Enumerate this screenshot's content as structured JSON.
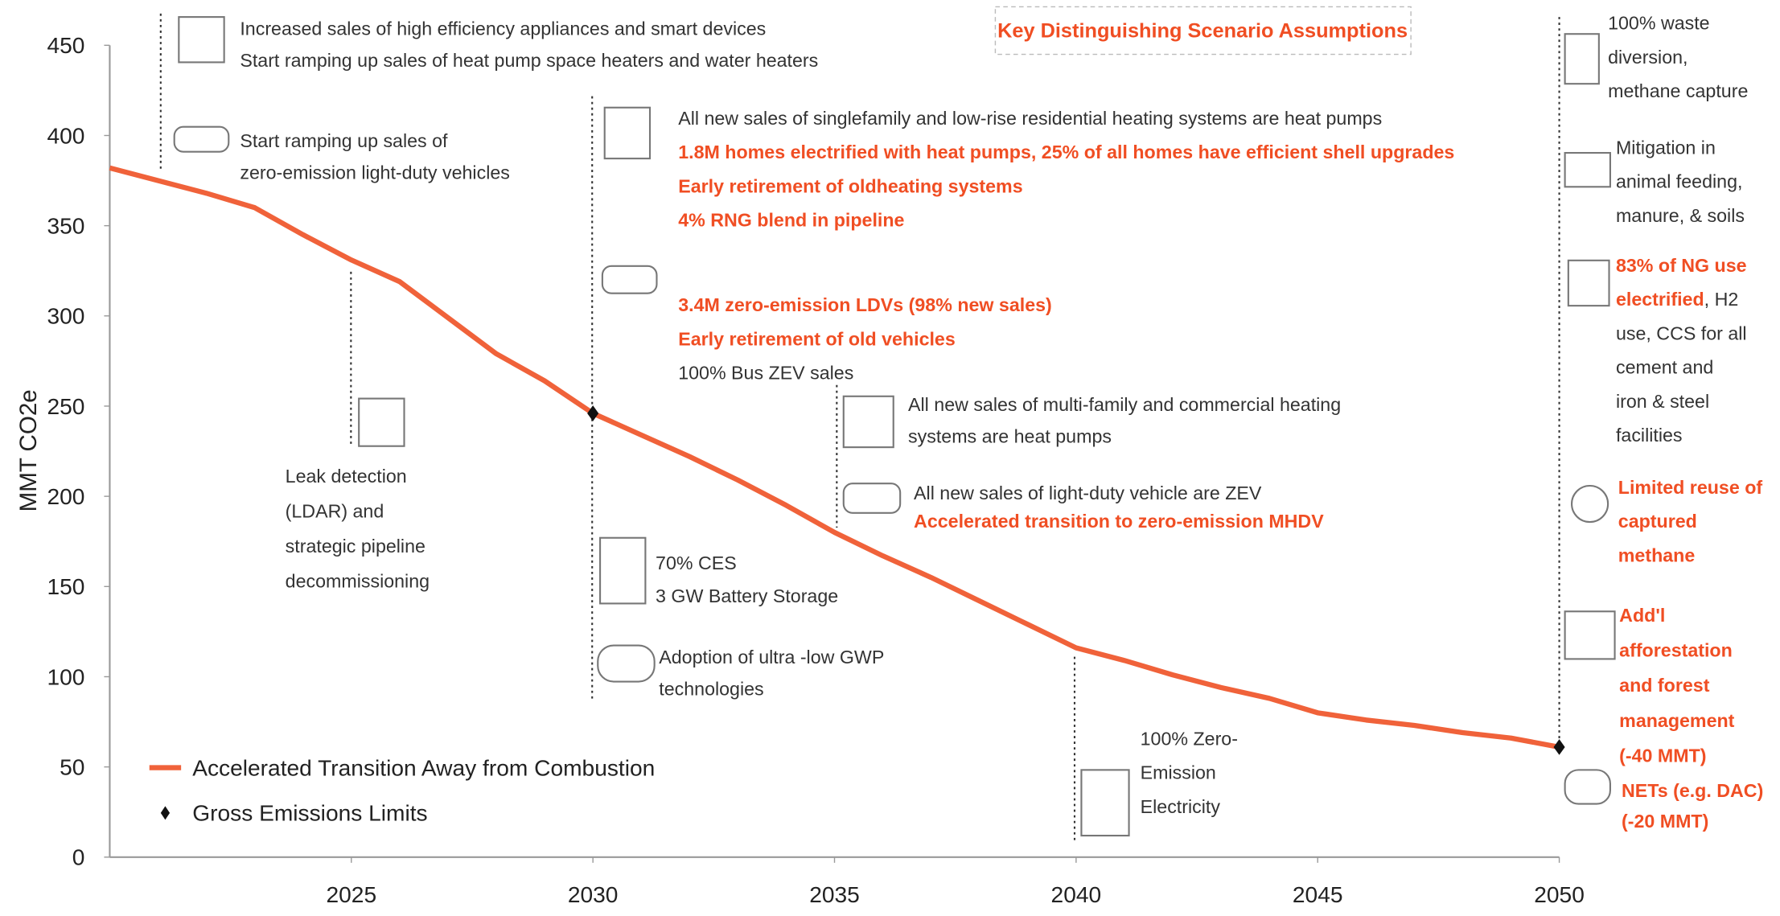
{
  "chart_data": {
    "type": "line",
    "title": "Key Distinguishing Scenario Assumptions",
    "ylabel": "MMT CO2e",
    "x": [
      2020,
      2021,
      2022,
      2023,
      2024,
      2025,
      2026,
      2027,
      2028,
      2029,
      2030,
      2031,
      2032,
      2033,
      2034,
      2035,
      2036,
      2037,
      2038,
      2039,
      2040,
      2041,
      2042,
      2043,
      2044,
      2045,
      2046,
      2047,
      2048,
      2049,
      2050
    ],
    "series": [
      {
        "name": "Accelerated Transition Away from Combustion",
        "color": "#f0623a",
        "values": [
          382,
          375,
          368,
          360,
          345,
          331,
          319,
          299,
          279,
          264,
          246,
          234,
          222,
          209,
          195,
          180,
          167,
          155,
          142,
          129,
          116,
          109,
          101,
          94,
          88,
          80,
          76,
          73,
          69,
          66,
          61
        ]
      },
      {
        "name": "Gross Emissions Limits",
        "color": "#111111",
        "type": "scatter",
        "x": [
          2030,
          2050
        ],
        "values": [
          246,
          61
        ]
      }
    ],
    "xlim": [
      2020,
      2050
    ],
    "xticks": [
      2025,
      2030,
      2035,
      2040,
      2045,
      2050
    ],
    "ylim": [
      0,
      450
    ],
    "yticks": [
      0,
      50,
      100,
      150,
      200,
      250,
      300,
      350,
      400,
      450
    ],
    "legend": "lower left",
    "annotations": [
      {
        "lines": [
          [
            {
              "text": "Increased sales of high efficiency appliances and smart devices",
              "color": "#333333"
            }
          ],
          [
            {
              "text": "Start ramping up sales of heat pump space heaters and water heaters",
              "color": "#333333"
            }
          ]
        ]
      },
      {
        "lines": [
          [
            {
              "text": "Start ramping up sales of",
              "color": "#333333"
            }
          ],
          [
            {
              "text": "zero-emission light-duty vehicles",
              "color": "#333333"
            }
          ]
        ]
      },
      {
        "lines": [
          [
            {
              "text": "Leak detection",
              "color": "#333333"
            }
          ],
          [
            {
              "text": "(LDAR) and",
              "color": "#333333"
            }
          ],
          [
            {
              "text": "strategic pipeline",
              "color": "#333333"
            }
          ],
          [
            {
              "text": "decommissioning",
              "color": "#333333"
            }
          ]
        ]
      },
      {
        "lines": [
          [
            {
              "text": "All new sales of singlefamily and low-rise residential heating systems are heat pumps",
              "color": "#333333"
            }
          ],
          [
            {
              "text": "1.8M homes electrified with heat pumps, 25% of all homes have efficient shell upgrades",
              "color": "#f04e23"
            }
          ],
          [
            {
              "text": "Early retirement of oldheating systems",
              "color": "#f04e23"
            }
          ],
          [
            {
              "text": "4% RNG blend in pipeline",
              "color": "#f04e23"
            }
          ]
        ]
      },
      {
        "lines": [
          [
            {
              "text": "3.4M zero-emission LDVs (98% new sales)",
              "color": "#f04e23"
            }
          ],
          [
            {
              "text": "Early retirement of old vehicles",
              "color": "#f04e23"
            }
          ],
          [
            {
              "text": "100% Bus ZEV sales",
              "color": "#333333"
            }
          ]
        ]
      },
      {
        "lines": [
          [
            {
              "text": "70% CES",
              "color": "#333333"
            }
          ],
          [
            {
              "text": "3 GW Battery Storage",
              "color": "#333333"
            }
          ]
        ]
      },
      {
        "lines": [
          [
            {
              "text": "Adoption of ultra -low GWP",
              "color": "#333333"
            }
          ],
          [
            {
              "text": "technologies",
              "color": "#333333"
            }
          ]
        ]
      },
      {
        "lines": [
          [
            {
              "text": "All new sales of multi-family and commercial heating",
              "color": "#333333"
            }
          ],
          [
            {
              "text": "systems are heat pumps",
              "color": "#333333"
            }
          ]
        ]
      },
      {
        "lines": [
          [
            {
              "text": "All new sales of light-duty vehicle are ZEV",
              "color": "#333333"
            }
          ],
          [
            {
              "text": "Accelerated transition to zero-emission MHDV",
              "color": "#f04e23"
            }
          ]
        ]
      },
      {
        "lines": [
          [
            {
              "text": "100% Zero-",
              "color": "#333333"
            }
          ],
          [
            {
              "text": "Emission",
              "color": "#333333"
            }
          ],
          [
            {
              "text": "Electricity",
              "color": "#333333"
            }
          ]
        ]
      },
      {
        "lines": [
          [
            {
              "text": "100% waste",
              "color": "#333333"
            }
          ],
          [
            {
              "text": "diversion,",
              "color": "#333333"
            }
          ],
          [
            {
              "text": "methane capture",
              "color": "#333333"
            }
          ]
        ]
      },
      {
        "lines": [
          [
            {
              "text": "Mitigation in",
              "color": "#333333"
            }
          ],
          [
            {
              "text": "animal feeding,",
              "color": "#333333"
            }
          ],
          [
            {
              "text": "manure, & soils",
              "color": "#333333"
            }
          ]
        ]
      },
      {
        "lines": [
          [
            {
              "text": "83% of NG use",
              "color": "#f04e23"
            }
          ],
          [
            {
              "text": "electrified",
              "color": "#f04e23"
            },
            {
              "text": ", H2",
              "color": "#333333"
            }
          ],
          [
            {
              "text": "use, CCS for all",
              "color": "#333333"
            }
          ],
          [
            {
              "text": "cement and",
              "color": "#333333"
            }
          ],
          [
            {
              "text": "iron & steel",
              "color": "#333333"
            }
          ],
          [
            {
              "text": "facilities",
              "color": "#333333"
            }
          ]
        ]
      },
      {
        "lines": [
          [
            {
              "text": "Limited reuse of",
              "color": "#f04e23"
            }
          ],
          [
            {
              "text": "captured",
              "color": "#f04e23"
            }
          ],
          [
            {
              "text": "methane",
              "color": "#f04e23"
            }
          ]
        ]
      },
      {
        "lines": [
          [
            {
              "text": "Add'l",
              "color": "#f04e23"
            }
          ],
          [
            {
              "text": "afforestation",
              "color": "#f04e23"
            }
          ],
          [
            {
              "text": "and forest",
              "color": "#f04e23"
            }
          ],
          [
            {
              "text": "management",
              "color": "#f04e23"
            }
          ],
          [
            {
              "text": "(-40 MMT)",
              "color": "#f04e23"
            }
          ]
        ]
      },
      {
        "lines": [
          [
            {
              "text": "NETs (e.g. DAC)",
              "color": "#f04e23"
            }
          ],
          [
            {
              "text": "(-20 MMT)",
              "color": "#f04e23"
            }
          ]
        ]
      }
    ]
  }
}
